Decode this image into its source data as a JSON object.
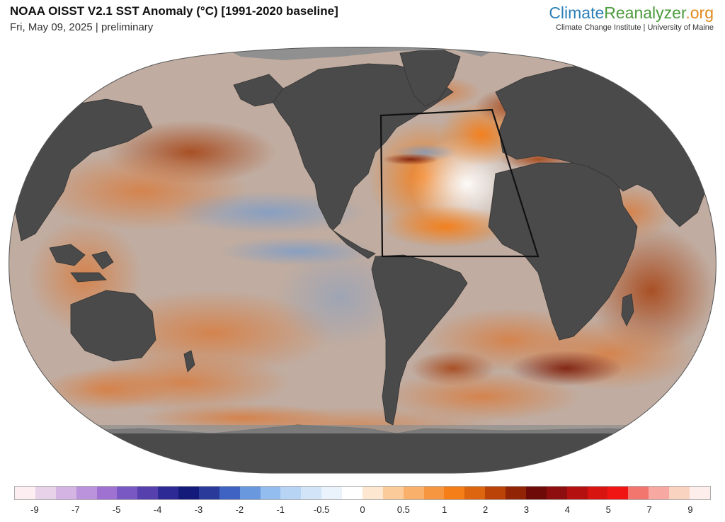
{
  "header": {
    "title": "NOAA OISST V2.1 SST Anomaly (°C) [1991-2020 baseline]",
    "subtitle": "Fri, May 09, 2025 | preliminary"
  },
  "brand": {
    "name_part1": "Climate",
    "name_part2": "Reanalyzer",
    "name_part3": ".org",
    "subtitle": "Climate Change Institute | University of Maine"
  },
  "colorbar": {
    "colors": [
      "#fdeef2",
      "#e8d2ea",
      "#d4b4e3",
      "#bb93dd",
      "#9f72d2",
      "#7a58c4",
      "#5540ad",
      "#2e2a95",
      "#141a7a",
      "#2a3a9a",
      "#3f63c3",
      "#6a98df",
      "#94bdef",
      "#b7d4f5",
      "#d2e4f8",
      "#eaf2fc",
      "#ffffff",
      "#fde7d0",
      "#fbcb99",
      "#f9b06a",
      "#f79640",
      "#f57e18",
      "#dd6510",
      "#bb4308",
      "#922406",
      "#6e0a08",
      "#8e0d0e",
      "#b3100f",
      "#d81411",
      "#f01512",
      "#f2756e",
      "#f7a8a1",
      "#f9d3c0",
      "#fdeeec"
    ],
    "labels": [
      "-9",
      "-7",
      "-5",
      "-4",
      "-3",
      "-2",
      "-1",
      "-0.5",
      "0",
      "0.5",
      "1",
      "2",
      "3",
      "4",
      "5",
      "7",
      "9"
    ]
  },
  "map": {
    "projection": "Winkel tripel (global)",
    "highlight_box": "North Atlantic"
  }
}
